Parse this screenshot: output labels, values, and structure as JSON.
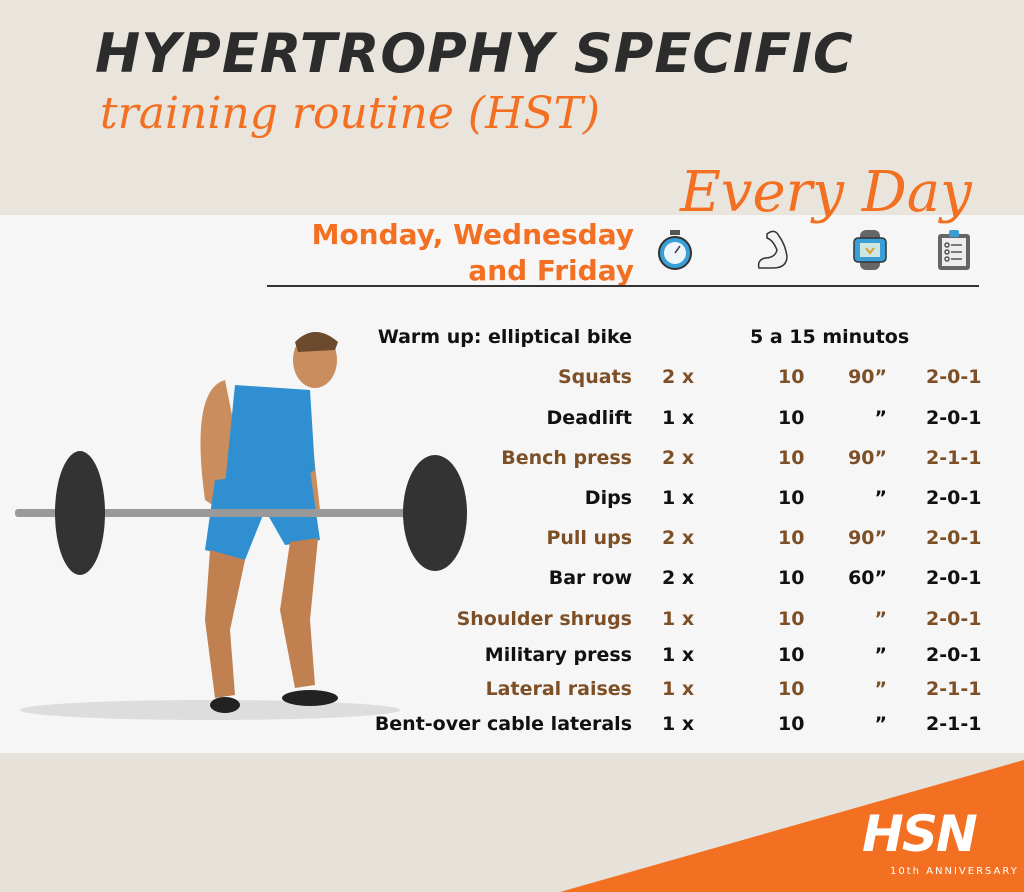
{
  "header": {
    "title": "HYPERTROPHY SPECIFIC",
    "subtitle": "training routine (HST)",
    "frequency": "Every Day",
    "days_line1": "Monday, Wednesday",
    "days_line2": "and Friday"
  },
  "column_icons": [
    "stopwatch-icon",
    "flexed-bicep-icon",
    "smartwatch-heart-icon",
    "clipboard-checklist-icon"
  ],
  "warmup": {
    "exercise": "Warm up: elliptical bike",
    "duration": "5 a 15 minutos"
  },
  "rows": [
    {
      "exercise": "Squats",
      "sets": "2 x",
      "reps": "10",
      "rest": "90”",
      "tempo": "2-0-1",
      "color": "brown"
    },
    {
      "exercise": "Deadlift",
      "sets": "1 x",
      "reps": "10",
      "rest": "”",
      "tempo": "2-0-1",
      "color": "black"
    },
    {
      "exercise": "Bench press",
      "sets": "2 x",
      "reps": "10",
      "rest": "90”",
      "tempo": "2-1-1",
      "color": "brown"
    },
    {
      "exercise": "Dips",
      "sets": "1 x",
      "reps": "10",
      "rest": "”",
      "tempo": "2-0-1",
      "color": "black"
    },
    {
      "exercise": "Pull ups",
      "sets": "2 x",
      "reps": "10",
      "rest": "90”",
      "tempo": "2-0-1",
      "color": "brown"
    },
    {
      "exercise": "Bar row",
      "sets": "2 x",
      "reps": "10",
      "rest": "60”",
      "tempo": "2-0-1",
      "color": "black"
    },
    {
      "exercise": "Shoulder shrugs",
      "sets": "1 x",
      "reps": "10",
      "rest": "”",
      "tempo": "2-0-1",
      "color": "brown"
    },
    {
      "exercise": "Military press",
      "sets": "1 x",
      "reps": "10",
      "rest": "”",
      "tempo": "2-0-1",
      "color": "black"
    },
    {
      "exercise": "Lateral raises",
      "sets": "1 x",
      "reps": "10",
      "rest": "”",
      "tempo": "2-1-1",
      "color": "brown"
    },
    {
      "exercise": "Bent-over cable laterals",
      "sets": "1 x",
      "reps": "10",
      "rest": "”",
      "tempo": "2-1-1",
      "color": "black"
    }
  ],
  "brand": {
    "logo": "HSN",
    "tagline": "10th ANNIVERSARY"
  },
  "colors": {
    "orange": "#f36f21",
    "brown": "#7d4f26",
    "dark": "#2c2c2c",
    "accent_blue": "#3a9fd6"
  }
}
